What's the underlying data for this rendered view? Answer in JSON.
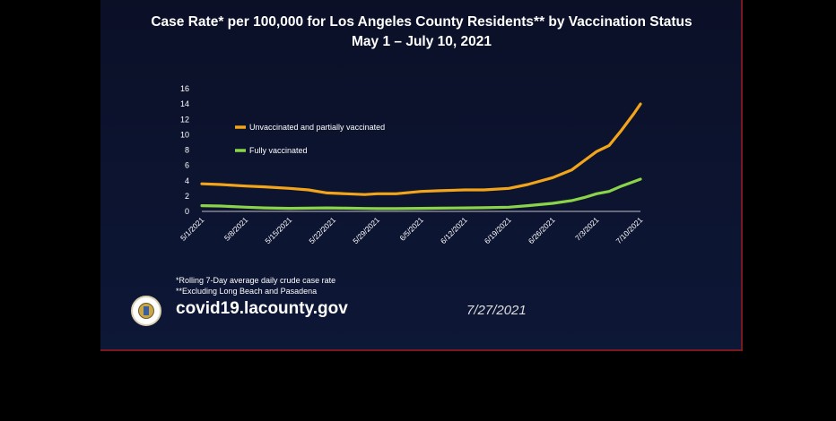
{
  "slide": {
    "title_line1": "Case Rate* per 100,000 for Los Angeles County Residents** by Vaccination Status",
    "title_line2": "May 1 – July 10, 2021",
    "note1": "*Rolling 7-Day average daily crude case rate",
    "note2": "**Excluding Long Beach and Pasadena",
    "website": "covid19.lacounty.gov",
    "date": "7/27/2021",
    "seal_icon": "county-seal-icon"
  },
  "chart_data": {
    "type": "line",
    "title": "Case Rate* per 100,000 for Los Angeles County Residents** by Vaccination Status",
    "subtitle": "May 1 – July 10, 2021",
    "xlabel": "",
    "ylabel": "",
    "ylim": [
      0,
      16
    ],
    "yticks": [
      0,
      2,
      4,
      6,
      8,
      10,
      12,
      14,
      16
    ],
    "xticks": [
      "5/1/2021",
      "5/8/2021",
      "5/15/2021",
      "5/22/2021",
      "5/29/2021",
      "6/5/2021",
      "6/12/2021",
      "6/19/2021",
      "6/26/2021",
      "7/3/2021",
      "7/10/2021"
    ],
    "grid": false,
    "legend": "inside top-left",
    "x": [
      "5/1/2021",
      "5/4/2021",
      "5/8/2021",
      "5/11/2021",
      "5/15/2021",
      "5/18/2021",
      "5/21/2021",
      "5/24/2021",
      "5/27/2021",
      "5/29/2021",
      "6/1/2021",
      "6/5/2021",
      "6/8/2021",
      "6/12/2021",
      "6/15/2021",
      "6/19/2021",
      "6/22/2021",
      "6/26/2021",
      "6/29/2021",
      "7/1/2021",
      "7/3/2021",
      "7/5/2021",
      "7/7/2021",
      "7/9/2021",
      "7/10/2021"
    ],
    "series": [
      {
        "name": "Unvaccinated and partially vaccinated",
        "color": "#f2a51a",
        "values": [
          3.6,
          3.5,
          3.3,
          3.2,
          3.0,
          2.8,
          2.4,
          2.3,
          2.2,
          2.3,
          2.3,
          2.6,
          2.7,
          2.8,
          2.8,
          3.0,
          3.5,
          4.4,
          5.4,
          6.6,
          7.8,
          8.6,
          10.6,
          12.8,
          14.0
        ]
      },
      {
        "name": "Fully vaccinated",
        "color": "#8bd44a",
        "values": [
          0.75,
          0.7,
          0.55,
          0.45,
          0.4,
          0.42,
          0.45,
          0.42,
          0.38,
          0.36,
          0.36,
          0.4,
          0.42,
          0.45,
          0.48,
          0.55,
          0.75,
          1.05,
          1.4,
          1.8,
          2.3,
          2.6,
          3.3,
          3.9,
          4.2
        ]
      }
    ]
  }
}
